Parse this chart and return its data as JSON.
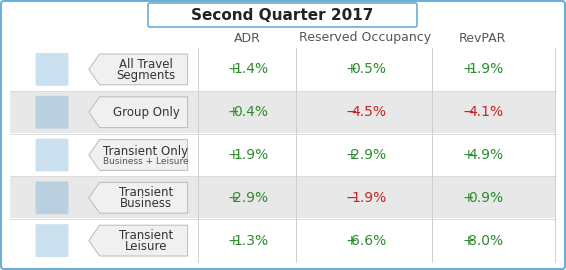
{
  "title": "Second Quarter 2017",
  "col_headers": [
    "ADR",
    "Reserved Occupancy",
    "RevPAR"
  ],
  "rows": [
    {
      "label_main": "All Travel",
      "label_sub": "Segments",
      "label_tiny": null,
      "adr": "1.4%",
      "occ": "0.5%",
      "revpar": "1.9%",
      "adr_pos": true,
      "occ_pos": true,
      "revpar_pos": true,
      "shaded": false
    },
    {
      "label_main": "Group Only",
      "label_sub": null,
      "label_tiny": null,
      "adr": "0.4%",
      "occ": "4.5%",
      "revpar": "4.1%",
      "adr_pos": true,
      "occ_pos": false,
      "revpar_pos": false,
      "shaded": true
    },
    {
      "label_main": "Transient Only",
      "label_sub": "Business + Leisure",
      "label_tiny": true,
      "adr": "1.9%",
      "occ": "2.9%",
      "revpar": "4.9%",
      "adr_pos": true,
      "occ_pos": true,
      "revpar_pos": true,
      "shaded": false
    },
    {
      "label_main": "Transient",
      "label_sub": "Business",
      "label_tiny": null,
      "adr": "2.9%",
      "occ": "1.9%",
      "revpar": "0.9%",
      "adr_pos": true,
      "occ_pos": false,
      "revpar_pos": true,
      "shaded": true
    },
    {
      "label_main": "Transient",
      "label_sub": "Leisure",
      "label_tiny": null,
      "adr": "1.3%",
      "occ": "6.6%",
      "revpar": "8.0%",
      "adr_pos": true,
      "occ_pos": true,
      "revpar_pos": true,
      "shaded": false
    }
  ],
  "bg_color": "#ffffff",
  "outer_border_color": "#6ab0d4",
  "title_box_border": "#6ab0d4",
  "shaded_row_color": "#e8e8e8",
  "header_color": "#555555",
  "positive_color": "#2e8b2e",
  "negative_color": "#cc2222",
  "icon_bg_color": "#5599cc",
  "arrow_fill": "#f0f0f0",
  "arrow_edge": "#bbbbbb",
  "divider_color": "#cccccc",
  "title_fontsize": 11,
  "header_fontsize": 9,
  "data_fontsize": 10,
  "label_main_fontsize": 8.5,
  "label_sub_fontsize": 6.5
}
